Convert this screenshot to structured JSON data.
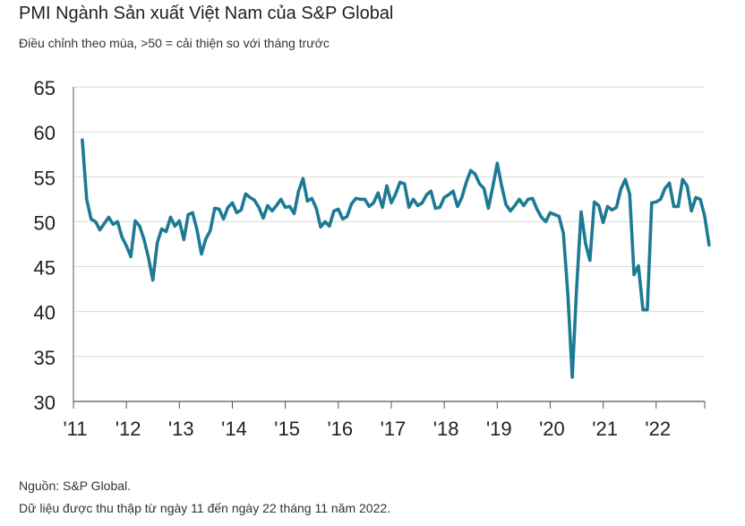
{
  "header": {
    "title": "PMI Ngành Sản xuất Việt Nam của S&P Global",
    "subtitle": "Điều chỉnh theo mùa, >50 = cải thiện so với tháng trước"
  },
  "footer": {
    "source": "Nguồn: S&P Global.",
    "note": "Dữ liệu được thu thập từ ngày 11 đến ngày 22 tháng 11 năm 2022."
  },
  "colors": {
    "line": "#1d7a94",
    "grid": "#d9d9d9",
    "axis": "#555555"
  },
  "chart_data": {
    "type": "line",
    "title": "PMI Ngành Sản xuất Việt Nam của S&P Global",
    "xlabel": "",
    "ylabel": "",
    "ylim": [
      30,
      65
    ],
    "yticks": [
      30,
      35,
      40,
      45,
      50,
      55,
      60,
      65
    ],
    "grid": true,
    "x_tick_labels": [
      "'11",
      "'12",
      "'13",
      "'14",
      "'15",
      "'16",
      "'17",
      "'18",
      "'19",
      "'20",
      "'21",
      "'22"
    ],
    "x_start": "2011-03",
    "x_end_axis": "2022-12",
    "series": [
      {
        "name": "PMI",
        "start": "2011-03",
        "values": [
          59.1,
          52.5,
          50.3,
          50.0,
          49.1,
          49.8,
          50.5,
          49.7,
          50.0,
          48.3,
          47.3,
          46.1,
          50.1,
          49.5,
          48.0,
          46.0,
          43.5,
          47.7,
          49.2,
          48.9,
          50.5,
          49.5,
          50.1,
          48.0,
          50.8,
          51.0,
          49.1,
          46.4,
          48.1,
          49.0,
          51.5,
          51.4,
          50.3,
          51.6,
          52.1,
          51.0,
          51.3,
          53.1,
          52.7,
          52.4,
          51.6,
          50.4,
          51.8,
          51.2,
          51.8,
          52.5,
          51.6,
          51.7,
          50.9,
          53.4,
          54.8,
          52.3,
          52.6,
          51.5,
          49.4,
          50.0,
          49.5,
          51.2,
          51.4,
          50.3,
          50.6,
          52.0,
          52.6,
          52.5,
          52.5,
          51.7,
          52.1,
          53.2,
          51.6,
          54.0,
          52.1,
          53.1,
          54.4,
          54.2,
          51.6,
          52.5,
          51.8,
          52.1,
          53.0,
          53.4,
          51.5,
          51.6,
          52.7,
          53.0,
          53.4,
          51.7,
          52.7,
          54.4,
          55.7,
          55.3,
          54.2,
          53.7,
          51.5,
          53.9,
          56.5,
          54.0,
          51.9,
          51.2,
          51.8,
          52.5,
          51.8,
          52.5,
          52.6,
          51.4,
          50.5,
          50.0,
          51.0,
          50.8,
          50.6,
          48.7,
          41.9,
          32.7,
          42.7,
          51.1,
          47.6,
          45.7,
          52.2,
          51.8,
          49.9,
          51.7,
          51.3,
          51.6,
          53.6,
          54.7,
          53.1,
          44.1,
          45.1,
          40.2,
          40.2,
          52.1,
          52.2,
          52.5,
          53.7,
          54.3,
          51.7,
          51.7,
          54.7,
          54.0,
          51.2,
          52.7,
          52.5,
          50.6,
          47.4
        ]
      }
    ]
  }
}
